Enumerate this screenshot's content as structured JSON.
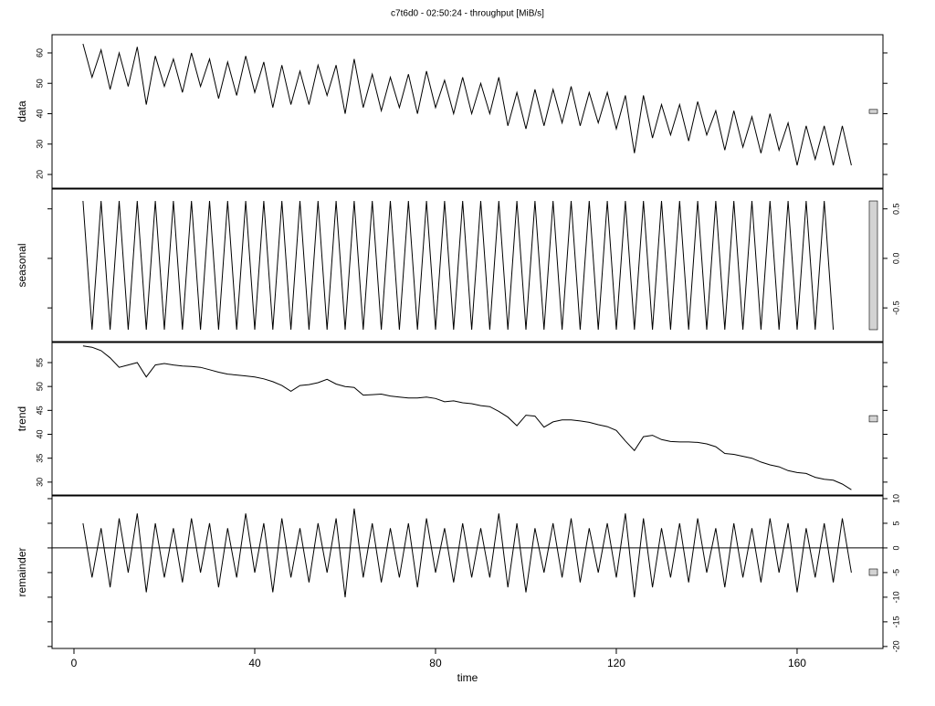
{
  "chart_data": {
    "type": "line",
    "title": "c7t6d0 - 02:50:24 - throughput [MiB/s]",
    "xlabel": "time",
    "x": [
      2,
      4,
      6,
      8,
      10,
      12,
      14,
      16,
      18,
      20,
      22,
      24,
      26,
      28,
      30,
      32,
      34,
      36,
      38,
      40,
      42,
      44,
      46,
      48,
      50,
      52,
      54,
      56,
      58,
      60,
      62,
      64,
      66,
      68,
      70,
      72,
      74,
      76,
      78,
      80,
      82,
      84,
      86,
      88,
      90,
      92,
      94,
      96,
      98,
      100,
      102,
      104,
      106,
      108,
      110,
      112,
      114,
      116,
      118,
      120,
      122,
      124,
      126,
      128,
      130,
      132,
      134,
      136,
      138,
      140,
      142,
      144,
      146,
      148,
      150,
      152,
      154,
      156,
      158,
      160,
      162,
      164,
      166,
      168,
      170,
      172
    ],
    "xlim": [
      -4.85,
      179
    ],
    "xticks": [
      0,
      40,
      80,
      120,
      160
    ],
    "color": "#000000",
    "panels": [
      {
        "name": "data",
        "side": "left",
        "ylim": [
          15.5,
          66
        ],
        "yticks": [
          20,
          30,
          40,
          50,
          60
        ],
        "values": [
          63,
          52,
          61,
          48,
          60,
          49,
          62,
          43,
          59,
          49,
          58,
          47,
          60,
          49,
          58,
          45,
          57,
          46,
          59,
          47,
          57,
          42,
          56,
          43,
          54,
          43,
          56,
          46,
          56,
          40,
          58,
          42,
          53,
          41,
          52,
          42,
          53,
          40,
          54,
          42,
          51,
          40,
          52,
          40,
          50,
          40,
          52,
          36,
          47,
          35,
          48,
          36,
          48,
          37,
          49,
          36,
          47,
          37,
          47,
          35,
          46,
          27,
          46,
          32,
          43,
          33,
          43,
          31,
          44,
          33,
          41,
          28,
          41,
          29,
          39,
          27,
          40,
          28,
          37,
          23,
          36,
          25,
          36,
          23,
          36,
          23
        ]
      },
      {
        "name": "seasonal",
        "side": "right",
        "ylim": [
          -0.84,
          0.7
        ],
        "yticks": [
          0.5,
          {
            "value": 0,
            "label": "0.0"
          },
          -0.5
        ],
        "values": [
          0.58,
          -0.72,
          0.58,
          -0.72,
          0.58,
          -0.72,
          0.58,
          -0.72,
          0.58,
          -0.72,
          0.58,
          -0.72,
          0.58,
          -0.72,
          0.58,
          -0.72,
          0.58,
          -0.72,
          0.58,
          -0.72,
          0.58,
          -0.72,
          0.58,
          -0.72,
          0.58,
          -0.72,
          0.58,
          -0.72,
          0.58,
          -0.72,
          0.58,
          -0.72,
          0.58,
          -0.72,
          0.58,
          -0.72,
          0.58,
          -0.72,
          0.58,
          -0.72,
          0.58,
          -0.72,
          0.58,
          -0.72,
          0.58,
          -0.72,
          0.58,
          -0.72,
          0.58,
          -0.72,
          0.58,
          -0.72,
          0.58,
          -0.72,
          0.58,
          -0.72,
          0.58,
          -0.72,
          0.58,
          -0.72,
          0.58,
          -0.72,
          0.58,
          -0.72,
          0.58,
          -0.72,
          0.58,
          -0.72,
          0.58,
          -0.72,
          0.58,
          -0.72,
          0.58,
          -0.72,
          0.58,
          -0.72,
          0.58,
          -0.72,
          0.58,
          -0.72,
          0.58,
          -0.72,
          0.58,
          -0.72
        ]
      },
      {
        "name": "trend",
        "side": "left",
        "ylim": [
          27.3,
          59.2
        ],
        "yticks": [
          30,
          35,
          40,
          45,
          50,
          55
        ],
        "values": [
          58.5,
          58.2,
          57.5,
          56,
          54,
          54.5,
          55,
          52,
          54.5,
          54.8,
          54.5,
          54.3,
          54.2,
          54,
          53.5,
          53,
          52.6,
          52.4,
          52.2,
          52,
          51.6,
          51,
          50.2,
          49,
          50.2,
          50.4,
          50.8,
          51.5,
          50.5,
          50,
          49.8,
          48.2,
          48.3,
          48.4,
          48,
          47.8,
          47.6,
          47.6,
          47.8,
          47.5,
          46.8,
          47,
          46.6,
          46.4,
          46,
          45.8,
          44.8,
          43.6,
          41.8,
          44,
          43.8,
          41.5,
          42.6,
          43,
          43,
          42.8,
          42.5,
          42,
          41.6,
          40.8,
          38.6,
          36.6,
          39.5,
          39.8,
          38.9,
          38.5,
          38.4,
          38.4,
          38.3,
          38,
          37.4,
          36,
          35.8,
          35.4,
          35,
          34.2,
          33.6,
          33.2,
          32.4,
          32,
          31.8,
          31,
          30.6,
          30.4,
          29.6,
          28.4
        ]
      },
      {
        "name": "remainder",
        "side": "right",
        "ylim": [
          -20.4,
          10.55
        ],
        "yticks": [
          10,
          5,
          0,
          -5,
          -10,
          -15,
          -20
        ],
        "refline": 0,
        "values": [
          5,
          -6,
          4,
          -8,
          6,
          -5,
          7,
          -9,
          5,
          -6,
          4,
          -7,
          6,
          -5,
          5,
          -8,
          4,
          -6,
          7,
          -5,
          5,
          -9,
          6,
          -6,
          4,
          -7,
          5,
          -5,
          6,
          -10,
          8,
          -6,
          5,
          -7,
          4,
          -6,
          5,
          -8,
          6,
          -5,
          4,
          -7,
          5,
          -6,
          4,
          -6,
          7,
          -8,
          5,
          -9,
          4,
          -5,
          5,
          -6,
          6,
          -7,
          4,
          -5,
          5,
          -6,
          7,
          -10,
          6,
          -8,
          4,
          -6,
          5,
          -7,
          6,
          -5,
          4,
          -8,
          5,
          -6,
          4,
          -7,
          6,
          -5,
          5,
          -9,
          4,
          -6,
          5,
          -7,
          6,
          -5
        ]
      }
    ]
  }
}
